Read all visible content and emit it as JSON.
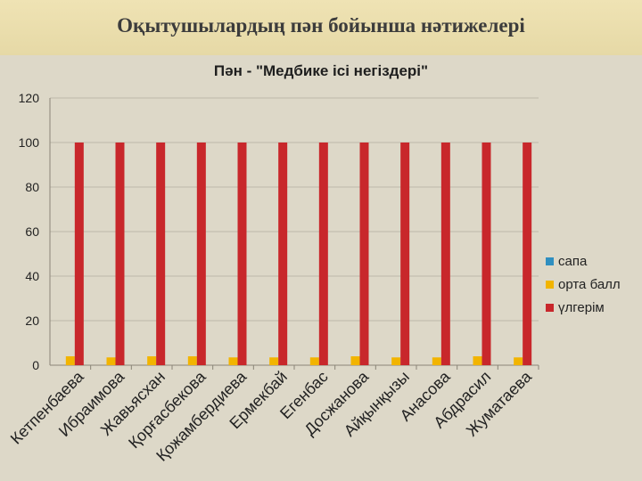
{
  "slide": {
    "title": "Оқытушылардың пән бойынша нәтижелері"
  },
  "colors": {
    "background": "#ddd8c8",
    "header_band": "#e8dcaa",
    "sapa": "#2f8fc0",
    "orta_ball": "#f2b400",
    "ulgerim": "#c8272b"
  },
  "chart_data": {
    "type": "bar",
    "title": "Пән - \"Медбике ісі негіздері\"",
    "xlabel": "",
    "ylabel": "",
    "ylim": [
      0,
      120
    ],
    "yticks": [
      0,
      20,
      40,
      60,
      80,
      100,
      120
    ],
    "grid": true,
    "legend_position": "right",
    "categories": [
      "Кетпенбаева",
      "Ибраимова",
      "Жавьясхан",
      "Қорғасбекова",
      "Қожамбердиева",
      "Ермекбай",
      "Егенбас",
      "Досжанова",
      "Айқынқызы",
      "Анасова",
      "Абдрасил",
      "Жуматаева"
    ],
    "series": [
      {
        "name": "сапа",
        "color": "#2f8fc0",
        "values": [
          0,
          0,
          0,
          0,
          0,
          0,
          0,
          0,
          0,
          0,
          0,
          0
        ]
      },
      {
        "name": "орта балл",
        "color": "#f2b400",
        "values": [
          4,
          3.5,
          4,
          4,
          3.5,
          3.5,
          3.5,
          4,
          3.5,
          3.5,
          4,
          3.5
        ]
      },
      {
        "name": "үлгерім",
        "color": "#c8272b",
        "values": [
          100,
          100,
          100,
          100,
          100,
          100,
          100,
          100,
          100,
          100,
          100,
          100
        ]
      }
    ]
  }
}
